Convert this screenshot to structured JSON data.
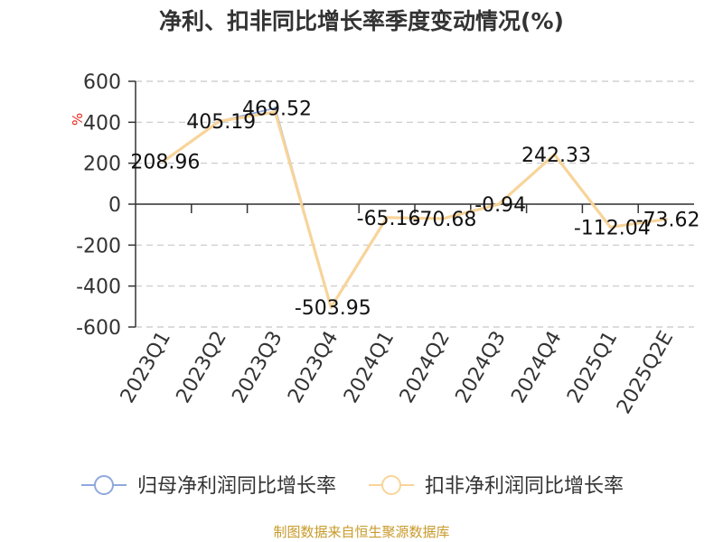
{
  "title": "净利、扣非同比增长率季度变动情况(%)",
  "source": "制图数据来自恒生聚源数据库",
  "y_unit": "%",
  "colors": {
    "series1": "#8fa8dc",
    "series2": "#f8d49a",
    "unit": "#e8231a",
    "source": "#c89a2a",
    "grid": "#c8c8c8",
    "axis": "#333333",
    "text": "#333333",
    "label": "#111111"
  },
  "chart_data": {
    "type": "line",
    "categories": [
      "2023Q1",
      "2023Q2",
      "2023Q3",
      "2023Q4",
      "2024Q1",
      "2024Q2",
      "2024Q3",
      "2024Q4",
      "2025Q1",
      "2025Q2E"
    ],
    "series": [
      {
        "name": "归母净利润同比增长率",
        "values": [
          208.96,
          405.19,
          469.52,
          -503.95,
          -65.16,
          -70.68,
          -0.94,
          242.33,
          -112.04,
          -73.62
        ]
      },
      {
        "name": "扣非净利润同比增长率",
        "values": [
          208.96,
          405.19,
          450,
          -503.95,
          -65.16,
          -70.68,
          -0.94,
          242.33,
          -112.04,
          -73.62
        ]
      }
    ],
    "data_labels": [
      "208.96",
      "405.19",
      "469.52",
      "-503.95",
      "-65.16",
      "-70.68",
      "-0.94",
      "242.33",
      "-112.04",
      "-73.62"
    ],
    "y_ticks": [
      600,
      400,
      200,
      0,
      -200,
      -400,
      -600
    ],
    "ylim": [
      -600,
      600
    ],
    "grid": "horizontal-dashed",
    "legend": "bottom"
  }
}
